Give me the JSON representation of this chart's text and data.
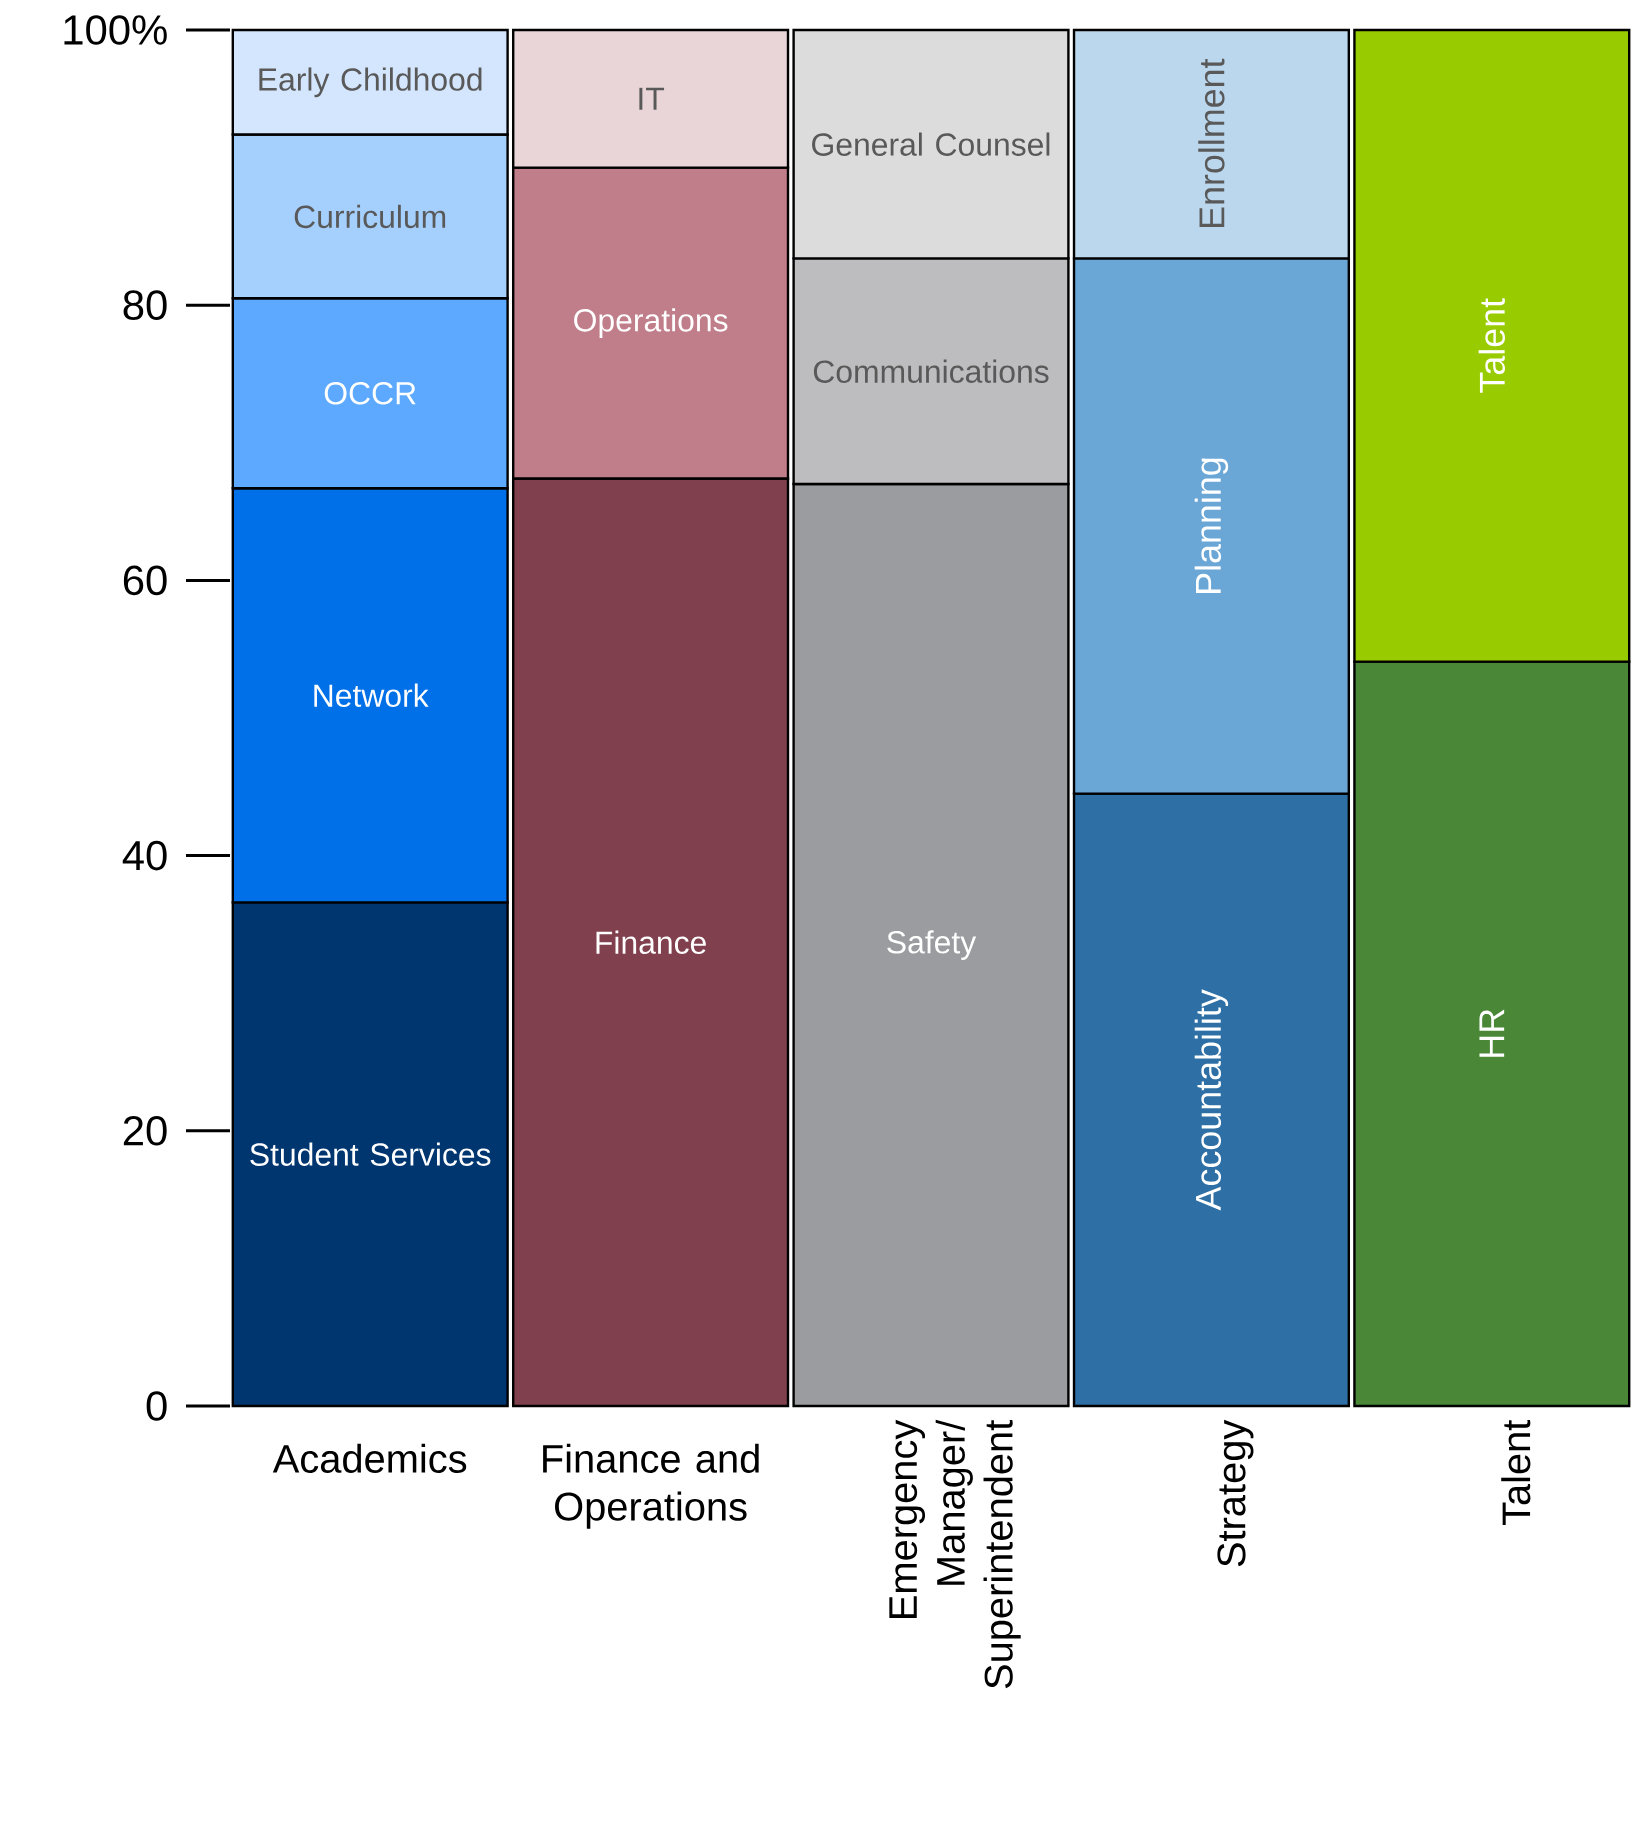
{
  "chart_data": {
    "type": "bar",
    "stacked": true,
    "categories": [
      "Academics",
      "Finance and Operations",
      "Emergency Manager/ Superintendent",
      "Strategy",
      "Talent"
    ],
    "ylim": [
      0,
      100
    ],
    "yticks": [
      0,
      20,
      40,
      60,
      80,
      {
        "value": 100,
        "label": "100%"
      }
    ],
    "series": [
      {
        "name": "Student Services",
        "color": "#003670",
        "values": [
          36.6,
          null,
          null,
          null,
          null
        ]
      },
      {
        "name": "Network",
        "color": "#0070e8",
        "values": [
          30.1,
          null,
          null,
          null,
          null
        ]
      },
      {
        "name": "OCCR",
        "color": "#5ca9ff",
        "values": [
          13.8,
          null,
          null,
          null,
          null
        ]
      },
      {
        "name": "Curriculum",
        "color": "#a5cffd",
        "values": [
          11.9,
          null,
          null,
          null,
          null
        ]
      },
      {
        "name": "Early Childhood",
        "color": "#d4e6fd",
        "values": [
          7.6,
          null,
          null,
          null,
          null
        ]
      },
      {
        "name": "Finance",
        "color": "#80404d",
        "values": [
          null,
          67.4,
          null,
          null,
          null
        ]
      },
      {
        "name": "Operations",
        "color": "#c07e8a",
        "values": [
          null,
          22.6,
          null,
          null,
          null
        ]
      },
      {
        "name": "IT",
        "color": "#e9d5d8",
        "values": [
          null,
          10.0,
          null,
          null,
          null
        ]
      },
      {
        "name": "Safety",
        "color": "#9b9c9f",
        "values": [
          null,
          null,
          67.0,
          null,
          null
        ]
      },
      {
        "name": "Communications",
        "color": "#bdbdbf",
        "values": [
          null,
          null,
          16.4,
          null,
          null
        ]
      },
      {
        "name": "General Counsel",
        "color": "#dcdcdc",
        "values": [
          null,
          null,
          16.6,
          null,
          null
        ]
      },
      {
        "name": "Accountability",
        "color": "#2e70a5",
        "values": [
          null,
          null,
          null,
          44.5,
          null
        ]
      },
      {
        "name": "Planning",
        "color": "#6aa7d6",
        "values": [
          null,
          null,
          null,
          38.9,
          null
        ]
      },
      {
        "name": "Enrollment",
        "color": "#bbd7ee",
        "values": [
          null,
          null,
          null,
          16.6,
          null
        ]
      },
      {
        "name": "HR",
        "color": "#4a8837",
        "values": [
          null,
          null,
          null,
          null,
          54.1
        ]
      },
      {
        "name": "Talent",
        "color": "#99cc00",
        "values": [
          null,
          null,
          null,
          null,
          45.9
        ]
      }
    ]
  }
}
